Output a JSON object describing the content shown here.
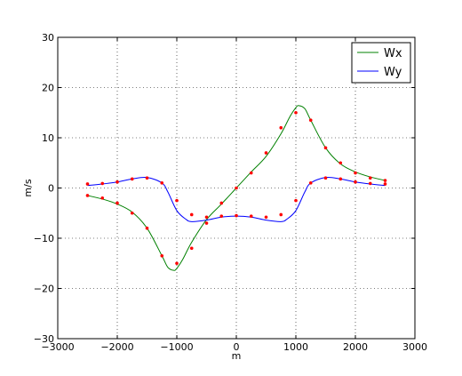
{
  "chart_data": {
    "type": "line",
    "xlabel": "m",
    "ylabel": "m/s",
    "xlim": [
      -3000,
      3000
    ],
    "ylim": [
      -30,
      30
    ],
    "xticks": [
      -3000,
      -2000,
      -1000,
      0,
      1000,
      2000,
      3000
    ],
    "yticks": [
      -30,
      -20,
      -10,
      0,
      10,
      20,
      30
    ],
    "grid": true,
    "legend_position": "top-right",
    "series": [
      {
        "name": "Wx",
        "color": "#008000",
        "x": [
          -2500,
          -2250,
          -2000,
          -1750,
          -1500,
          -1250,
          -1150,
          -1050,
          -1000,
          -900,
          -750,
          -500,
          -250,
          0,
          250,
          500,
          750,
          900,
          1000,
          1050,
          1150,
          1250,
          1500,
          1750,
          2000,
          2250,
          2500
        ],
        "y": [
          -1.5,
          -2.2,
          -3.2,
          -4.8,
          -8.0,
          -13.5,
          -15.8,
          -16.4,
          -16.0,
          -14.2,
          -10.8,
          -6.3,
          -3.2,
          0,
          3.2,
          6.3,
          10.8,
          14.2,
          16.0,
          16.4,
          15.8,
          13.5,
          8.0,
          4.8,
          3.2,
          2.2,
          1.5
        ]
      },
      {
        "name": "Wy",
        "color": "#0000ff",
        "x": [
          -2500,
          -2250,
          -2000,
          -1750,
          -1500,
          -1250,
          -1150,
          -1000,
          -850,
          -750,
          -500,
          -250,
          0,
          250,
          500,
          750,
          850,
          1000,
          1150,
          1250,
          1500,
          1750,
          2000,
          2250,
          2500
        ],
        "y": [
          0.5,
          0.8,
          1.2,
          1.8,
          2.1,
          1.0,
          -0.8,
          -4.5,
          -6.2,
          -6.7,
          -6.4,
          -5.8,
          -5.6,
          -5.8,
          -6.4,
          -6.7,
          -6.2,
          -4.5,
          -0.8,
          1.0,
          2.1,
          1.8,
          1.2,
          0.8,
          0.5
        ]
      }
    ],
    "samples": {
      "color": "#ff0000",
      "points": [
        [
          -2500,
          0.8
        ],
        [
          -2500,
          -1.5
        ],
        [
          -2250,
          0.9
        ],
        [
          -2250,
          -2.0
        ],
        [
          -2000,
          1.2
        ],
        [
          -2000,
          -3.0
        ],
        [
          -1750,
          1.8
        ],
        [
          -1750,
          -5.0
        ],
        [
          -1500,
          2.0
        ],
        [
          -1500,
          -8.0
        ],
        [
          -1250,
          1.0
        ],
        [
          -1250,
          -13.5
        ],
        [
          -1000,
          -2.5
        ],
        [
          -1000,
          -15.0
        ],
        [
          -750,
          -5.3
        ],
        [
          -750,
          -12.0
        ],
        [
          -500,
          -5.8
        ],
        [
          -500,
          -7.0
        ],
        [
          -250,
          -5.6
        ],
        [
          -250,
          -3.0
        ],
        [
          0,
          -5.5
        ],
        [
          0,
          0.0
        ],
        [
          250,
          -5.6
        ],
        [
          250,
          3.0
        ],
        [
          500,
          -5.8
        ],
        [
          500,
          7.0
        ],
        [
          750,
          -5.3
        ],
        [
          750,
          12.0
        ],
        [
          1000,
          -2.5
        ],
        [
          1000,
          15.0
        ],
        [
          1250,
          1.0
        ],
        [
          1250,
          13.5
        ],
        [
          1500,
          2.0
        ],
        [
          1500,
          8.0
        ],
        [
          1750,
          1.8
        ],
        [
          1750,
          5.0
        ],
        [
          2000,
          1.2
        ],
        [
          2000,
          3.0
        ],
        [
          2250,
          0.9
        ],
        [
          2250,
          2.0
        ],
        [
          2500,
          0.8
        ],
        [
          2500,
          1.5
        ]
      ]
    }
  }
}
